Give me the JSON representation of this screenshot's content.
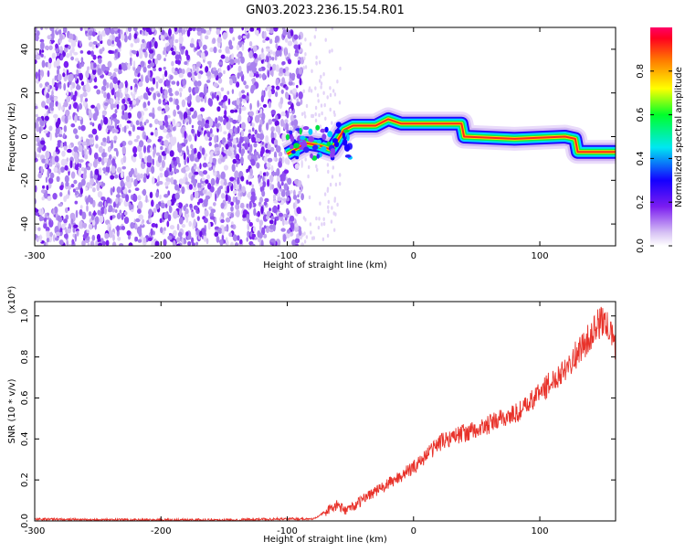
{
  "title": "GN03.2023.236.15.54.R01",
  "chart_data": [
    {
      "type": "heatmap",
      "xlabel": "Height of straight line (km)",
      "ylabel": "Frequency (Hz)",
      "xlim": [
        -300,
        160
      ],
      "ylim": [
        -50,
        50
      ],
      "x_ticks": [
        "-300",
        "-200",
        "-100",
        "0",
        "100"
      ],
      "y_ticks": [
        "-40",
        "-20",
        "0",
        "20",
        "40"
      ],
      "colorbar": {
        "label": "Normalized spectral amplitude",
        "range": [
          0,
          1
        ],
        "ticks": [
          "0.0",
          "0.2",
          "0.4",
          "0.6",
          "0.8"
        ]
      },
      "ridge": {
        "x": [
          -100,
          -85,
          -75,
          -65,
          -55,
          -48,
          -30,
          -20,
          -10,
          0,
          20,
          38,
          40,
          80,
          120,
          128,
          130,
          160
        ],
        "frequency": [
          -8,
          -3,
          -4,
          -6,
          3,
          5,
          5,
          8,
          6,
          6,
          6,
          6,
          0,
          -1,
          0,
          -1,
          -7,
          -7
        ]
      }
    },
    {
      "type": "line",
      "xlabel": "Height of straight line (km)",
      "ylabel": "SNR (10 * v/v)",
      "y_multiplier": "(x10⁴)",
      "xlim": [
        -300,
        160
      ],
      "ylim": [
        0,
        1.07
      ],
      "x_ticks": [
        "-300",
        "-200",
        "-100",
        "0",
        "100"
      ],
      "y_ticks": [
        "0.0",
        "0.2",
        "0.4",
        "0.6",
        "0.8",
        "1.0"
      ],
      "series": [
        {
          "color": "#e8322a",
          "x": [
            -300,
            -250,
            -200,
            -150,
            -100,
            -80,
            -65,
            -60,
            -55,
            -45,
            -35,
            -25,
            -15,
            -5,
            0,
            10,
            20,
            30,
            40,
            50,
            60,
            70,
            80,
            90,
            100,
            110,
            120,
            130,
            140,
            145,
            150,
            155,
            160
          ],
          "values": [
            0.01,
            0.005,
            0.005,
            0.005,
            0.01,
            0.01,
            0.06,
            0.08,
            0.05,
            0.08,
            0.13,
            0.16,
            0.2,
            0.24,
            0.26,
            0.32,
            0.38,
            0.41,
            0.43,
            0.44,
            0.47,
            0.5,
            0.52,
            0.56,
            0.63,
            0.68,
            0.75,
            0.82,
            0.9,
            0.95,
            0.98,
            0.93,
            0.85
          ]
        }
      ]
    }
  ]
}
